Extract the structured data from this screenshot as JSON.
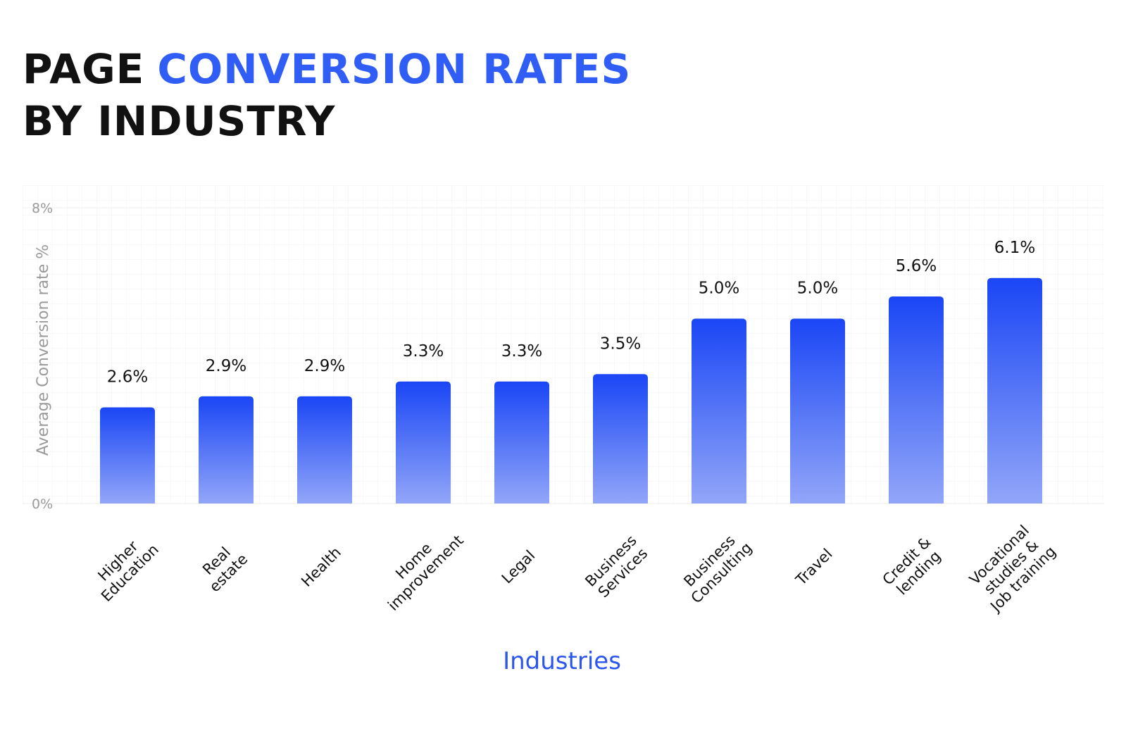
{
  "chart_data": {
    "type": "bar",
    "title": [
      "PAGE",
      "CONVERSION RATES",
      "BY INDUSTRY"
    ],
    "categories": [
      "Higher\nEducation",
      "Real\nestate",
      "Health",
      "Home\nimprovement",
      "Legal",
      "Business\nServices",
      "Business\nConsulting",
      "Travel",
      "Credit &\nlending",
      "Vocational\nstudies &\nJob training"
    ],
    "values": [
      2.6,
      2.9,
      2.9,
      3.3,
      3.3,
      3.5,
      5.0,
      5.0,
      5.6,
      6.1
    ],
    "value_labels": [
      "2.6%",
      "2.9%",
      "2.9%",
      "3.3%",
      "3.3%",
      "3.5%",
      "5.0%",
      "5.0%",
      "5.6%",
      "6.1%"
    ],
    "color": "#1a46f5",
    "ylim": [
      0,
      8
    ],
    "yticks": [
      {
        "value": 0,
        "label": "0%"
      },
      {
        "value": 8,
        "label": "8%"
      }
    ],
    "ylabel": "Average Conversion rate %",
    "xlabel": "Industries",
    "grid": true
  }
}
